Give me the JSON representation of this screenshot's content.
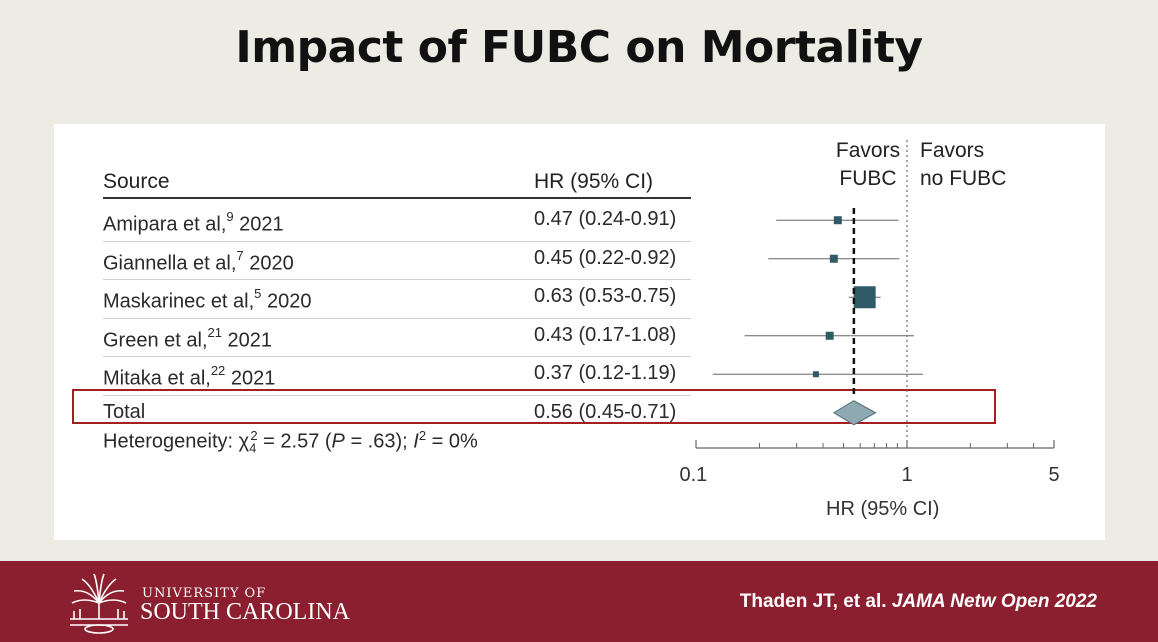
{
  "slide_title": "Impact of FUBC on Mortality",
  "headers": {
    "source": "Source",
    "hr": "HR (95% CI)",
    "favors_left_1": "Favors",
    "favors_left_2": "FUBC",
    "favors_right_1": "Favors",
    "favors_right_2": "no FUBC"
  },
  "chart_data": {
    "type": "forest",
    "x_scale": "log",
    "xlim": [
      0.1,
      5
    ],
    "xticks": [
      0.1,
      1,
      5
    ],
    "tick_labels": [
      "0.1",
      "1",
      "5"
    ],
    "xlabel": "HR (95% CI)",
    "reference_line": 1,
    "pooled_line": 0.56,
    "studies": [
      {
        "author": "Amipara et al,",
        "ref": "9",
        "year": "2021",
        "hr": 0.47,
        "lo": 0.24,
        "hi": 0.91,
        "hr_text": "0.47 (0.24-0.91)",
        "weight": "small"
      },
      {
        "author": "Giannella et al,",
        "ref": "7",
        "year": "2020",
        "hr": 0.45,
        "lo": 0.22,
        "hi": 0.92,
        "hr_text": "0.45 (0.22-0.92)",
        "weight": "small"
      },
      {
        "author": "Maskarinec et al,",
        "ref": "5",
        "year": "2020",
        "hr": 0.63,
        "lo": 0.53,
        "hi": 0.75,
        "hr_text": "0.63 (0.53-0.75)",
        "weight": "large"
      },
      {
        "author": "Green et al,",
        "ref": "21",
        "year": "2021",
        "hr": 0.43,
        "lo": 0.17,
        "hi": 1.08,
        "hr_text": "0.43 (0.17-1.08)",
        "weight": "small"
      },
      {
        "author": "Mitaka et al,",
        "ref": "22",
        "year": "2021",
        "hr": 0.37,
        "lo": 0.12,
        "hi": 1.19,
        "hr_text": "0.37 (0.12-1.19)",
        "weight": "tiny"
      }
    ],
    "total": {
      "label": "Total",
      "hr": 0.56,
      "lo": 0.45,
      "hi": 0.71,
      "hr_text": "0.56 (0.45-0.71)"
    },
    "heterogeneity": {
      "prefix": "Heterogeneity: χ",
      "chi_sub": "4",
      "chi_sup": "2",
      "mid": " = 2.57 (",
      "p_label": "P",
      "p_rest": " = .63); ",
      "i_label": "I",
      "i_sup": "2",
      "i_rest": " = 0%"
    }
  },
  "footer": {
    "univ_line1": "UNIVERSITY OF",
    "univ_line2": "SOUTH CAROLINA",
    "citation_plain": "Thaden JT, et al. ",
    "citation_italic": "JAMA Netw Open 2022"
  },
  "colors": {
    "marker": "#2f5b66",
    "diamond": "#8fa9b3",
    "highlight_box": "#a31f22",
    "footer_bg": "#8b1f30"
  }
}
